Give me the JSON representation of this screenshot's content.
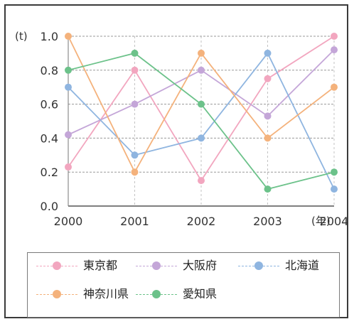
{
  "chart_data": {
    "type": "line",
    "ylabel": "(t)",
    "xunit": "(年)",
    "categories": [
      "2000",
      "2001",
      "2002",
      "2003",
      "2004"
    ],
    "yticks": [
      "0.0",
      "0.2",
      "0.4",
      "0.6",
      "0.8",
      "1.0"
    ],
    "ylim": [
      0,
      1.0
    ],
    "grid": true,
    "legend_position": "bottom",
    "series": [
      {
        "name": "東京都",
        "color": "#f2a6bf",
        "values": [
          0.23,
          0.8,
          0.15,
          0.75,
          1.0
        ]
      },
      {
        "name": "大阪府",
        "color": "#c4a6d8",
        "values": [
          0.42,
          0.6,
          0.8,
          0.53,
          0.92
        ]
      },
      {
        "name": "北海道",
        "color": "#8fb5e0",
        "values": [
          0.7,
          0.3,
          0.4,
          0.9,
          0.1
        ]
      },
      {
        "name": "神奈川県",
        "color": "#f4b27c",
        "values": [
          1.0,
          0.2,
          0.9,
          0.4,
          0.7
        ]
      },
      {
        "name": "愛知県",
        "color": "#6cc28a",
        "values": [
          0.8,
          0.9,
          0.6,
          0.1,
          0.2
        ]
      }
    ]
  }
}
